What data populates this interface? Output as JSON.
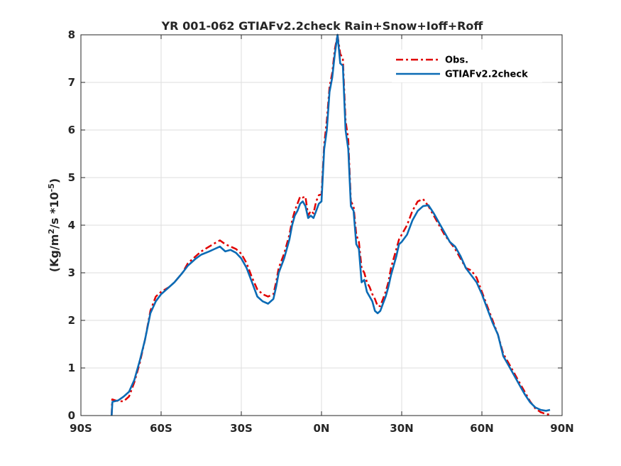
{
  "chart_data": {
    "type": "line",
    "title": "YR 001-062 GTIAFv2.2check  Rain+Snow+Ioff+Roff",
    "xlabel": "",
    "ylabel": "(Kg/m²/s *10⁻⁵)",
    "ylabel_parts": {
      "pre": "(Kg/m",
      "sup1": "2",
      "mid": "/s *10",
      "sup2": "-5",
      "post": ")"
    },
    "xlim": [
      -90,
      90
    ],
    "ylim": [
      0,
      8
    ],
    "x_ticks": [
      -90,
      -60,
      -30,
      0,
      30,
      60,
      90
    ],
    "x_tick_labels": [
      "90S",
      "60S",
      "30S",
      "0N",
      "30N",
      "60N",
      "90N"
    ],
    "y_ticks": [
      0,
      1,
      2,
      3,
      4,
      5,
      6,
      7,
      8
    ],
    "y_tick_labels": [
      "0",
      "1",
      "2",
      "3",
      "4",
      "5",
      "6",
      "7",
      "8"
    ],
    "grid": true,
    "legend_position": "top-right",
    "series": [
      {
        "name": "Obs.",
        "color": "#e00000",
        "style": "dash-dot",
        "points": [
          [
            -78.5,
            0
          ],
          [
            -78.3,
            0.34
          ],
          [
            -76,
            0.3
          ],
          [
            -74,
            0.3
          ],
          [
            -72,
            0.4
          ],
          [
            -70,
            0.7
          ],
          [
            -68,
            1.1
          ],
          [
            -66,
            1.6
          ],
          [
            -64,
            2.2
          ],
          [
            -62,
            2.5
          ],
          [
            -60,
            2.6
          ],
          [
            -57,
            2.7
          ],
          [
            -55,
            2.8
          ],
          [
            -52,
            3.0
          ],
          [
            -50,
            3.2
          ],
          [
            -47,
            3.35
          ],
          [
            -45,
            3.45
          ],
          [
            -42,
            3.55
          ],
          [
            -40,
            3.62
          ],
          [
            -38,
            3.68
          ],
          [
            -36,
            3.6
          ],
          [
            -34,
            3.55
          ],
          [
            -32,
            3.5
          ],
          [
            -30,
            3.4
          ],
          [
            -28,
            3.2
          ],
          [
            -26,
            2.9
          ],
          [
            -24,
            2.65
          ],
          [
            -22,
            2.55
          ],
          [
            -20,
            2.5
          ],
          [
            -18,
            2.55
          ],
          [
            -17,
            2.8
          ],
          [
            -16,
            3.1
          ],
          [
            -14,
            3.4
          ],
          [
            -12,
            3.8
          ],
          [
            -11,
            4.1
          ],
          [
            -10,
            4.3
          ],
          [
            -9,
            4.45
          ],
          [
            -8,
            4.6
          ],
          [
            -7,
            4.58
          ],
          [
            -6,
            4.6
          ],
          [
            -5,
            4.2
          ],
          [
            -4,
            4.3
          ],
          [
            -3,
            4.25
          ],
          [
            -2,
            4.5
          ],
          [
            -1,
            4.63
          ],
          [
            0,
            4.65
          ],
          [
            1,
            5.7
          ],
          [
            2,
            6.2
          ],
          [
            3,
            6.9
          ],
          [
            4,
            7.2
          ],
          [
            5,
            7.7
          ],
          [
            6,
            8.0
          ],
          [
            7,
            7.6
          ],
          [
            8,
            7.5
          ],
          [
            9,
            6.2
          ],
          [
            10,
            5.8
          ],
          [
            11,
            4.5
          ],
          [
            12,
            4.4
          ],
          [
            13,
            3.8
          ],
          [
            14,
            3.65
          ],
          [
            15,
            3.1
          ],
          [
            16,
            3.0
          ],
          [
            17,
            2.8
          ],
          [
            18,
            2.7
          ],
          [
            19,
            2.55
          ],
          [
            20,
            2.45
          ],
          [
            21,
            2.3
          ],
          [
            22,
            2.3
          ],
          [
            23,
            2.45
          ],
          [
            24,
            2.6
          ],
          [
            25,
            2.8
          ],
          [
            26,
            3.1
          ],
          [
            27,
            3.3
          ],
          [
            28,
            3.5
          ],
          [
            29,
            3.7
          ],
          [
            30,
            3.8
          ],
          [
            32,
            4.0
          ],
          [
            34,
            4.3
          ],
          [
            36,
            4.5
          ],
          [
            38,
            4.55
          ],
          [
            40,
            4.4
          ],
          [
            42,
            4.2
          ],
          [
            44,
            4.0
          ],
          [
            46,
            3.8
          ],
          [
            48,
            3.65
          ],
          [
            50,
            3.5
          ],
          [
            52,
            3.3
          ],
          [
            54,
            3.1
          ],
          [
            56,
            3.05
          ],
          [
            58,
            2.9
          ],
          [
            60,
            2.6
          ],
          [
            62,
            2.3
          ],
          [
            64,
            2.0
          ],
          [
            66,
            1.7
          ],
          [
            68,
            1.3
          ],
          [
            70,
            1.1
          ],
          [
            72,
            0.9
          ],
          [
            74,
            0.7
          ],
          [
            76,
            0.5
          ],
          [
            78,
            0.3
          ],
          [
            80,
            0.15
          ],
          [
            82,
            0.07
          ],
          [
            84,
            0.03
          ],
          [
            85.5,
            0.02
          ]
        ]
      },
      {
        "name": "GTIAFv2.2check",
        "color": "#0b6bb5",
        "style": "solid",
        "points": [
          [
            -78.5,
            0
          ],
          [
            -78.2,
            0.29
          ],
          [
            -76,
            0.32
          ],
          [
            -74,
            0.4
          ],
          [
            -72,
            0.5
          ],
          [
            -70,
            0.75
          ],
          [
            -68,
            1.15
          ],
          [
            -66,
            1.6
          ],
          [
            -64,
            2.15
          ],
          [
            -62,
            2.4
          ],
          [
            -60,
            2.55
          ],
          [
            -57,
            2.7
          ],
          [
            -55,
            2.8
          ],
          [
            -52,
            3.0
          ],
          [
            -50,
            3.15
          ],
          [
            -47,
            3.3
          ],
          [
            -45,
            3.38
          ],
          [
            -42,
            3.45
          ],
          [
            -40,
            3.5
          ],
          [
            -38,
            3.55
          ],
          [
            -36,
            3.45
          ],
          [
            -34,
            3.48
          ],
          [
            -32,
            3.42
          ],
          [
            -30,
            3.3
          ],
          [
            -28,
            3.1
          ],
          [
            -26,
            2.8
          ],
          [
            -24,
            2.5
          ],
          [
            -22,
            2.4
          ],
          [
            -20,
            2.35
          ],
          [
            -18,
            2.45
          ],
          [
            -17,
            2.7
          ],
          [
            -16,
            3.0
          ],
          [
            -14,
            3.3
          ],
          [
            -12,
            3.7
          ],
          [
            -11,
            4.0
          ],
          [
            -10,
            4.2
          ],
          [
            -9,
            4.3
          ],
          [
            -8,
            4.45
          ],
          [
            -7,
            4.5
          ],
          [
            -6,
            4.4
          ],
          [
            -5,
            4.15
          ],
          [
            -4,
            4.2
          ],
          [
            -3,
            4.15
          ],
          [
            -2,
            4.3
          ],
          [
            -1,
            4.45
          ],
          [
            0,
            4.5
          ],
          [
            1,
            5.6
          ],
          [
            2,
            6.0
          ],
          [
            3,
            6.8
          ],
          [
            4,
            7.1
          ],
          [
            5,
            7.6
          ],
          [
            6,
            8.0
          ],
          [
            7,
            7.4
          ],
          [
            8,
            7.35
          ],
          [
            9,
            6.0
          ],
          [
            10,
            5.6
          ],
          [
            11,
            4.4
          ],
          [
            12,
            4.3
          ],
          [
            13,
            3.6
          ],
          [
            14,
            3.5
          ],
          [
            15,
            2.8
          ],
          [
            16,
            2.85
          ],
          [
            17,
            2.6
          ],
          [
            18,
            2.5
          ],
          [
            19,
            2.4
          ],
          [
            20,
            2.2
          ],
          [
            21,
            2.15
          ],
          [
            22,
            2.2
          ],
          [
            23,
            2.35
          ],
          [
            24,
            2.5
          ],
          [
            25,
            2.7
          ],
          [
            26,
            2.95
          ],
          [
            27,
            3.15
          ],
          [
            28,
            3.35
          ],
          [
            29,
            3.6
          ],
          [
            30,
            3.65
          ],
          [
            32,
            3.8
          ],
          [
            34,
            4.1
          ],
          [
            36,
            4.3
          ],
          [
            38,
            4.4
          ],
          [
            40,
            4.42
          ],
          [
            42,
            4.25
          ],
          [
            44,
            4.05
          ],
          [
            46,
            3.85
          ],
          [
            48,
            3.65
          ],
          [
            50,
            3.55
          ],
          [
            52,
            3.35
          ],
          [
            54,
            3.1
          ],
          [
            56,
            2.95
          ],
          [
            58,
            2.8
          ],
          [
            60,
            2.55
          ],
          [
            62,
            2.25
          ],
          [
            64,
            1.95
          ],
          [
            66,
            1.7
          ],
          [
            68,
            1.25
          ],
          [
            70,
            1.05
          ],
          [
            72,
            0.85
          ],
          [
            74,
            0.65
          ],
          [
            76,
            0.45
          ],
          [
            78,
            0.28
          ],
          [
            80,
            0.17
          ],
          [
            82,
            0.12
          ],
          [
            84,
            0.1
          ],
          [
            85.5,
            0.12
          ]
        ]
      }
    ]
  }
}
